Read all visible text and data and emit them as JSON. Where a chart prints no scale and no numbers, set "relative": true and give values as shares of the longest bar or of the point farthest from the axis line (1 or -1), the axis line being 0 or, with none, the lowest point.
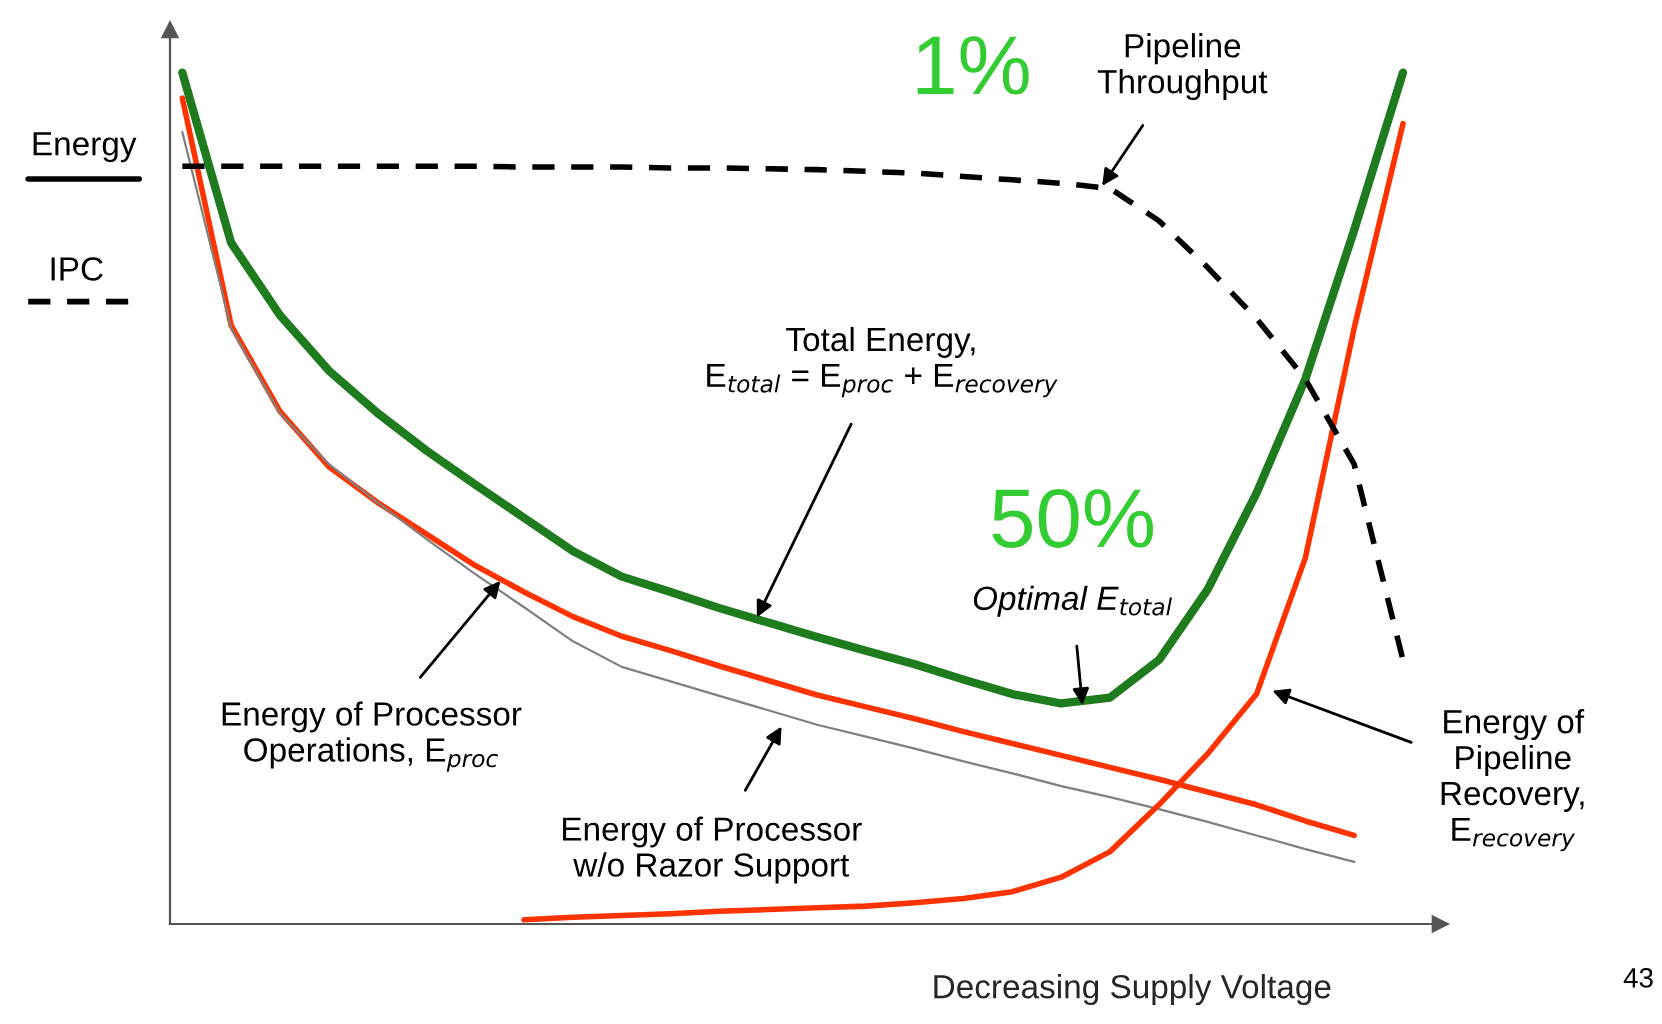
{
  "chart_data": {
    "type": "line",
    "relative": true,
    "xlabel": "Decreasing Supply Voltage",
    "grid": false,
    "categories": [
      null,
      null,
      null,
      null,
      null,
      null,
      null,
      null,
      null,
      null,
      null,
      null,
      null,
      null,
      null,
      null,
      null,
      null,
      null,
      null,
      null,
      null,
      null,
      null,
      null,
      null
    ],
    "series": [
      {
        "color": "#1e7b1e",
        "values": [
          1.0,
          0.8,
          0.715,
          0.65,
          0.6,
          0.556,
          0.516,
          0.477,
          0.438,
          0.408,
          0.39,
          0.371,
          0.354,
          0.337,
          0.321,
          0.305,
          0.287,
          0.27,
          0.259,
          0.266,
          0.31,
          0.393,
          0.506,
          0.64,
          0.815,
          1.0
        ]
      },
      {
        "color": "#ff3300",
        "values": [
          0.97,
          0.703,
          0.602,
          0.537,
          0.495,
          0.458,
          0.421,
          0.39,
          0.361,
          0.338,
          0.321,
          0.303,
          0.286,
          0.269,
          0.255,
          0.241,
          0.226,
          0.212,
          0.198,
          0.184,
          0.17,
          0.155,
          0.14,
          0.121,
          0.104,
          null
        ]
      },
      {
        "color": "#808080",
        "values": [
          0.93,
          0.7,
          0.6,
          0.54,
          0.495,
          0.452,
          0.411,
          0.372,
          0.332,
          0.302,
          0.285,
          0.268,
          0.251,
          0.234,
          0.22,
          0.206,
          0.191,
          0.177,
          0.162,
          0.149,
          0.135,
          0.12,
          0.104,
          0.088,
          0.073,
          null
        ]
      },
      {
        "color": "#ff3300",
        "values": [
          null,
          null,
          null,
          null,
          null,
          null,
          null,
          0.005,
          0.008,
          0.01,
          0.012,
          0.015,
          0.017,
          0.019,
          0.021,
          0.025,
          0.03,
          0.038,
          0.055,
          0.085,
          0.14,
          0.2,
          0.27,
          0.43,
          0.7,
          0.94
        ]
      },
      {
        "color": "#000000",
        "line_style": "dashed",
        "values": [
          0.89,
          0.89,
          0.89,
          0.89,
          0.89,
          0.89,
          0.89,
          0.889,
          0.889,
          0.889,
          0.888,
          0.888,
          0.887,
          0.886,
          0.884,
          0.882,
          0.878,
          0.874,
          0.87,
          0.864,
          0.826,
          0.771,
          0.711,
          0.64,
          0.54,
          0.31
        ]
      }
    ],
    "annotations": [
      "Energy",
      "IPC",
      "1%",
      "Pipeline\nThroughput",
      "Total Energy,\nE$_{total}$ = E$_{proc}$ + E$_{recovery}$",
      "50%",
      "Optimal E$_{total}$",
      "Energy of Processor\nOperations, E$_{proc}$",
      "Energy of Processor\nw/o Razor Support",
      "Energy of\nPipeline\nRecovery,\nE$_{recovery}$",
      "43"
    ]
  }
}
